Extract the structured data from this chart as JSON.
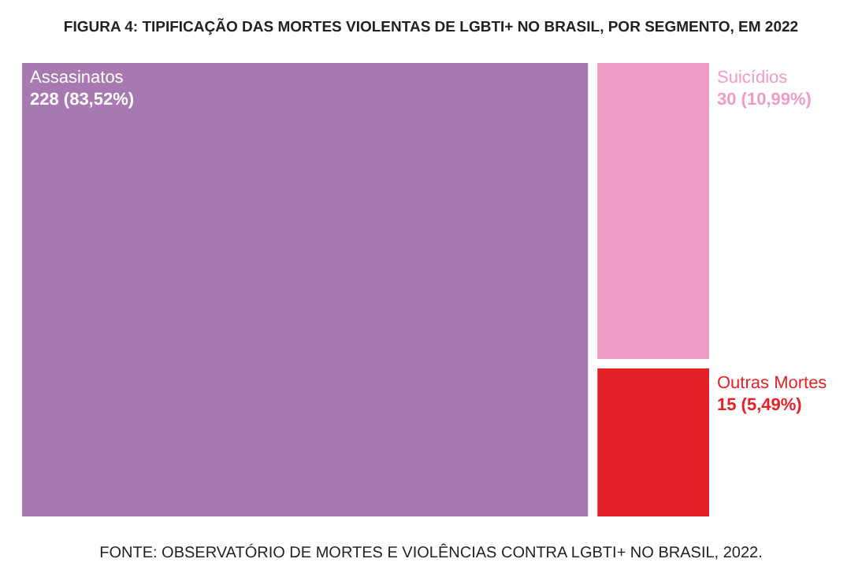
{
  "chart_data": {
    "type": "other",
    "title": "FIGURA 4: TIPIFICAÇÃO DAS MORTES VIOLENTAS DE LGBTI+ NO BRASIL, POR SEGMENTO, EM 2022",
    "categories": [
      "Assasinatos",
      "Suicídios",
      "Outras Mortes"
    ],
    "values": [
      228,
      30,
      15
    ],
    "value_labels": [
      "228 (83,52%)",
      "30 (10,99%)",
      "15 (5,49%)"
    ],
    "colors": [
      "#a878b0",
      "#ee9cc4",
      "#e42126"
    ],
    "annotations": [
      "FONTE: OBSERVATÓRIO DE MORTES E VIOLÊNCIAS CONTRA LGBTI+ NO BRASIL, 2022."
    ]
  }
}
